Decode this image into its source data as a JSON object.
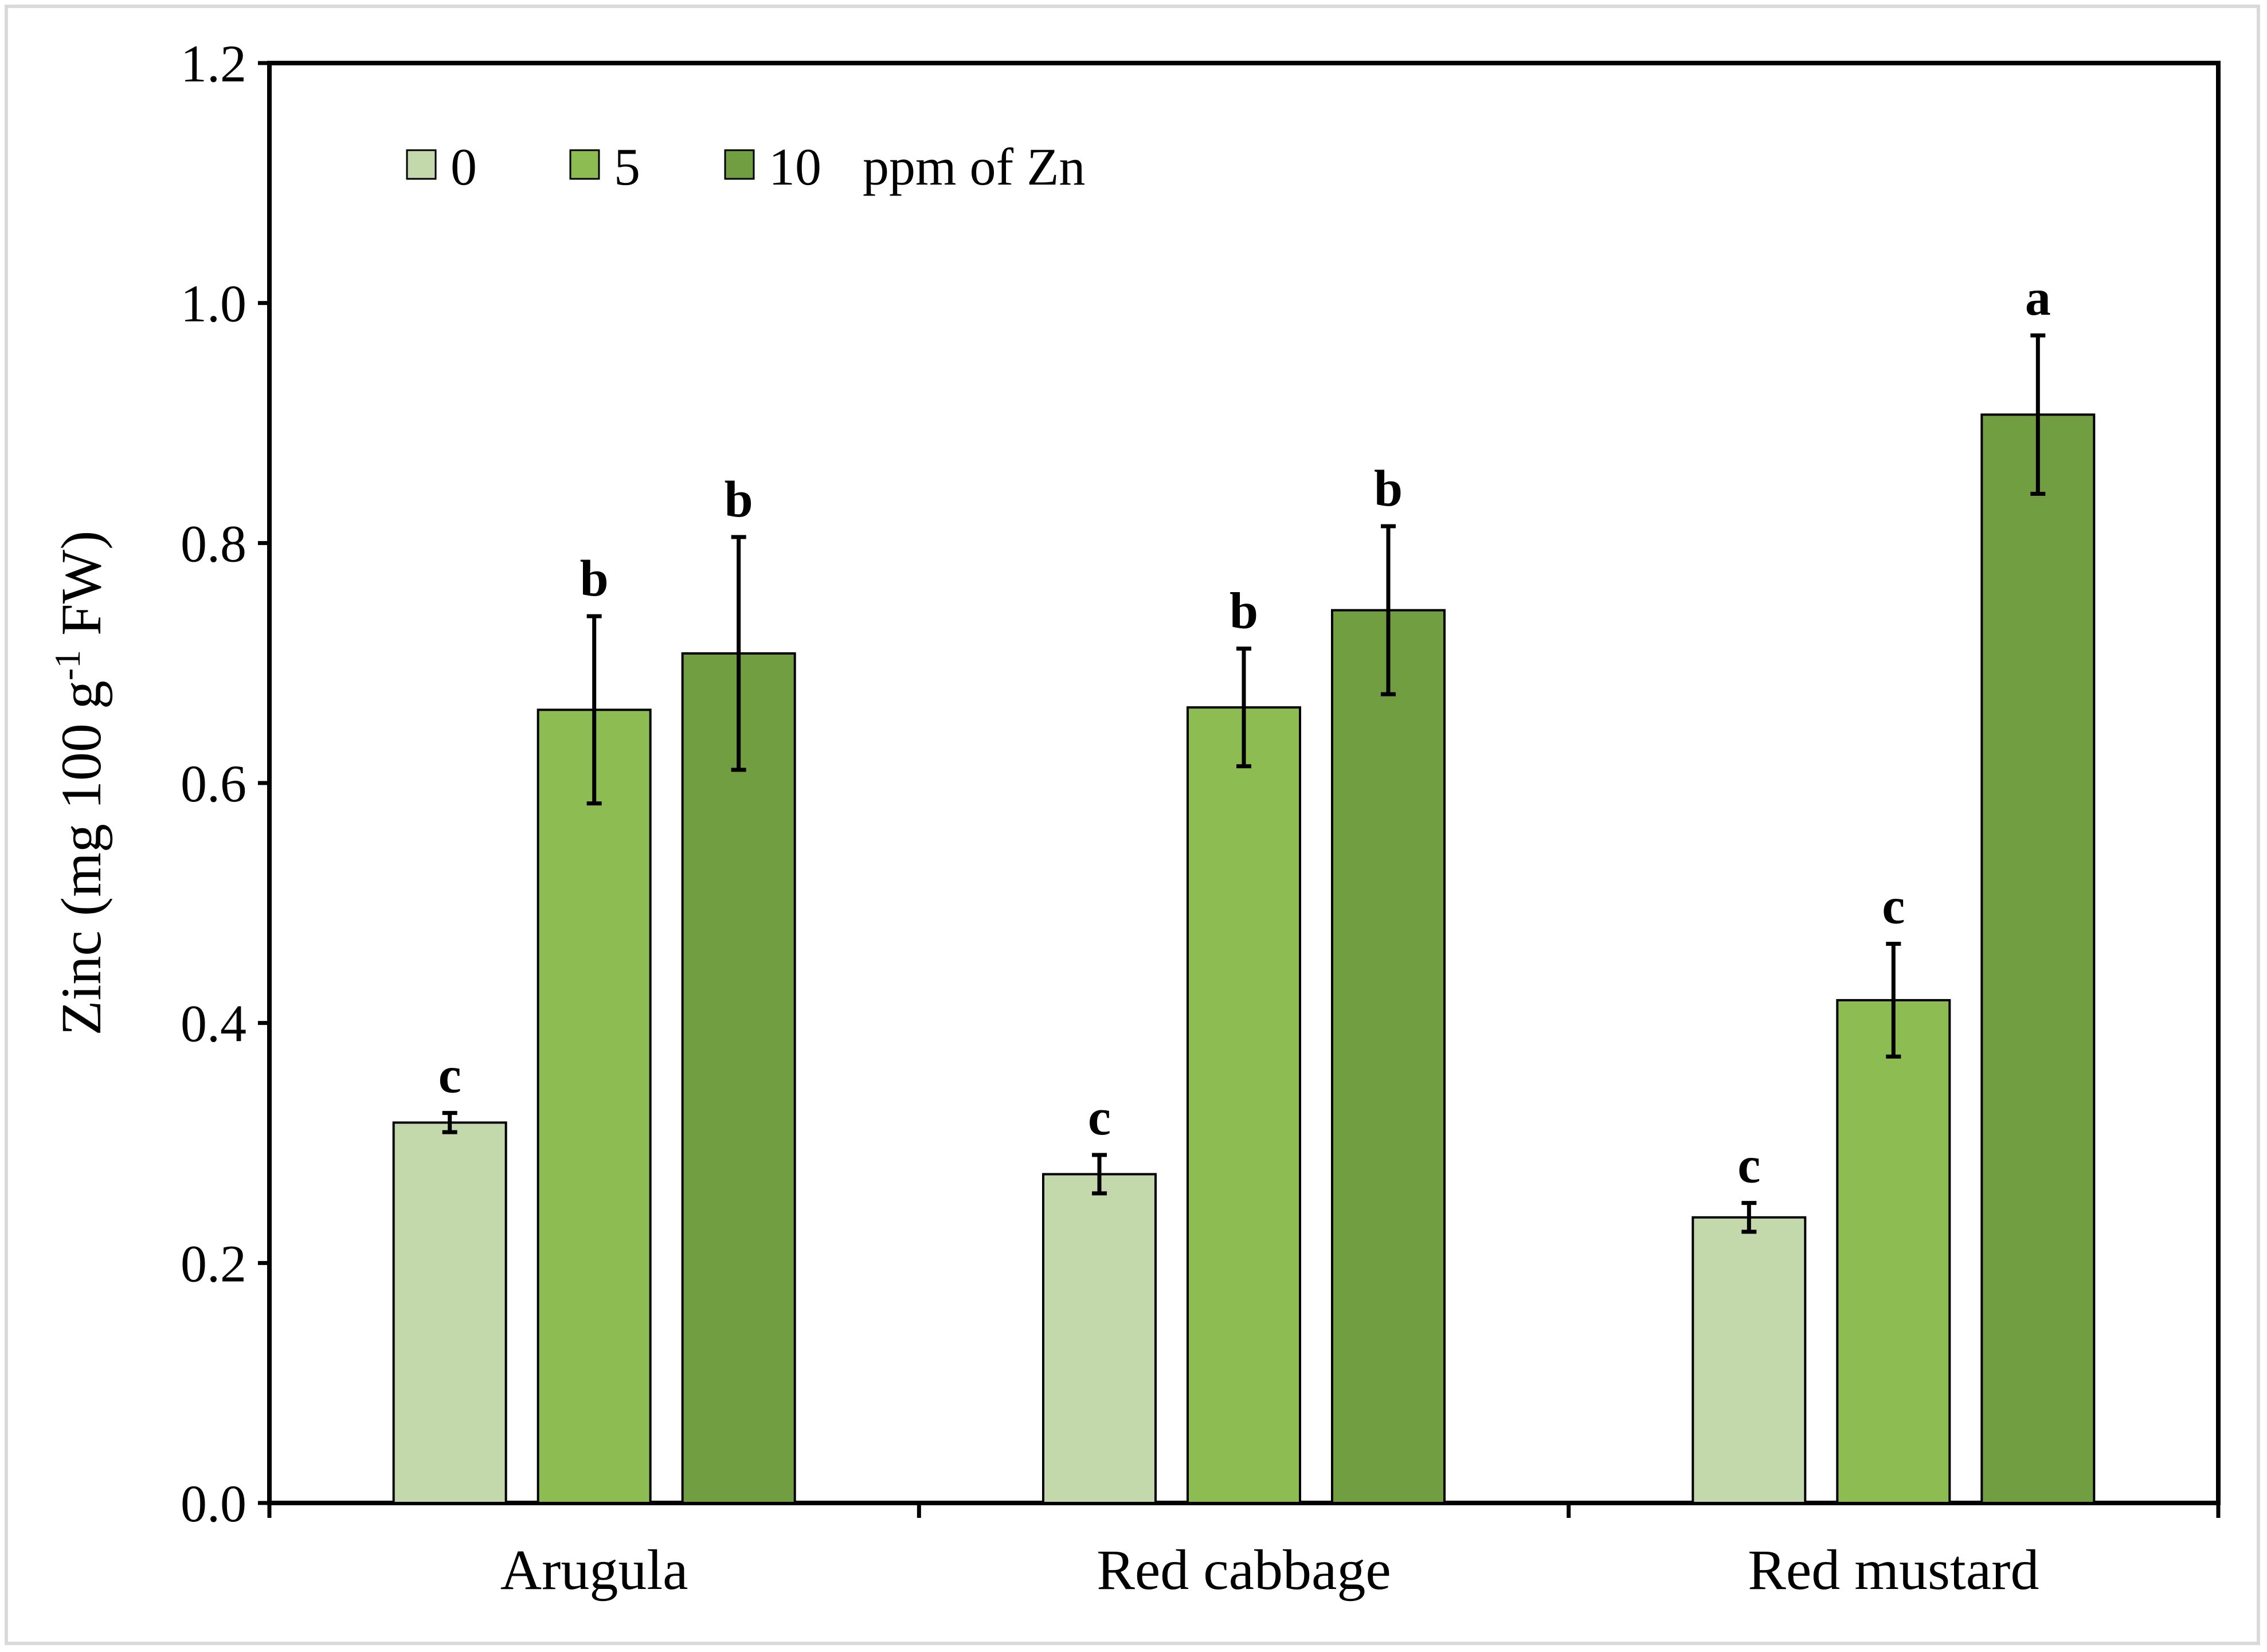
{
  "chart_data": {
    "type": "bar",
    "title": "",
    "xlabel": "",
    "ylabel": "Zinc (mg 100 g-1 FW)",
    "ylabel_parts": {
      "main": "Zinc (mg 100 g",
      "sup": "-1",
      "tail": " FW)"
    },
    "ylim": [
      0,
      1.2
    ],
    "yticks": [
      0.0,
      0.2,
      0.4,
      0.6,
      0.8,
      1.0,
      1.2
    ],
    "ytick_labels": [
      "0.0",
      "0.2",
      "0.4",
      "0.6",
      "0.8",
      "1.0",
      "1.2"
    ],
    "categories": [
      "Arugula",
      "Red cabbage",
      "Red mustard"
    ],
    "legend_position": "top-left",
    "legend_suffix": "ppm of Zn",
    "series": [
      {
        "name": "0",
        "color": "#c4d9ab",
        "values": [
          0.317,
          0.274,
          0.238
        ],
        "errors": [
          0.008,
          0.016,
          0.012
        ],
        "letters": [
          "c",
          "c",
          "c"
        ]
      },
      {
        "name": "5",
        "color": "#8dbd52",
        "values": [
          0.661,
          0.663,
          0.419
        ],
        "errors": [
          0.078,
          0.049,
          0.047
        ],
        "letters": [
          "b",
          "b",
          "c"
        ]
      },
      {
        "name": "10",
        "color": "#719e41",
        "values": [
          0.708,
          0.744,
          0.907
        ],
        "errors": [
          0.097,
          0.07,
          0.066
        ],
        "letters": [
          "b",
          "b",
          "a"
        ]
      }
    ]
  }
}
